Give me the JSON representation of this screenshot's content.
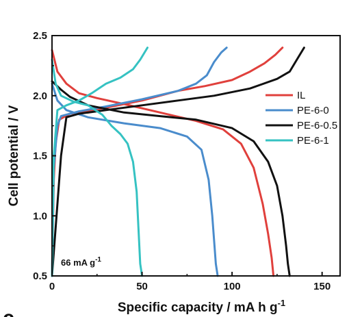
{
  "chart_data": {
    "type": "line",
    "panel_label": "c",
    "xlabel": "Specific capacity / mA h g",
    "xlabel_sup": "-1",
    "ylabel": "Cell potential / V",
    "xlim": [
      0,
      160
    ],
    "ylim": [
      0.5,
      2.5
    ],
    "x_ticks": [
      0,
      50,
      100,
      150
    ],
    "y_ticks": [
      "0.5",
      "1.0",
      "1.5",
      "2.0",
      "2.5"
    ],
    "annotation": {
      "text": "66 mA g",
      "sup": "-1"
    },
    "legend_position": "right",
    "series": [
      {
        "name": "IL",
        "color": "#e0403c",
        "discharge": [
          [
            0,
            2.38
          ],
          [
            3,
            2.2
          ],
          [
            8,
            2.1
          ],
          [
            15,
            2.02
          ],
          [
            25,
            1.98
          ],
          [
            40,
            1.93
          ],
          [
            60,
            1.86
          ],
          [
            80,
            1.79
          ],
          [
            95,
            1.72
          ],
          [
            105,
            1.6
          ],
          [
            112,
            1.4
          ],
          [
            117,
            1.1
          ],
          [
            120,
            0.85
          ],
          [
            122,
            0.65
          ],
          [
            123,
            0.5
          ]
        ],
        "charge": [
          [
            0,
            0.5
          ],
          [
            1,
            1.3
          ],
          [
            2,
            1.6
          ],
          [
            4,
            1.8
          ],
          [
            10,
            1.85
          ],
          [
            30,
            1.9
          ],
          [
            50,
            1.96
          ],
          [
            70,
            2.04
          ],
          [
            85,
            2.08
          ],
          [
            100,
            2.13
          ],
          [
            110,
            2.2
          ],
          [
            118,
            2.27
          ],
          [
            124,
            2.34
          ],
          [
            128,
            2.4
          ]
        ]
      },
      {
        "name": "PE-6-0",
        "color": "#4a8ccc",
        "discharge": [
          [
            0,
            2.1
          ],
          [
            3,
            1.96
          ],
          [
            8,
            1.88
          ],
          [
            20,
            1.82
          ],
          [
            40,
            1.77
          ],
          [
            60,
            1.73
          ],
          [
            75,
            1.66
          ],
          [
            83,
            1.55
          ],
          [
            87,
            1.3
          ],
          [
            89,
            1.0
          ],
          [
            90,
            0.8
          ],
          [
            91,
            0.6
          ],
          [
            92,
            0.5
          ]
        ],
        "charge": [
          [
            0,
            0.5
          ],
          [
            1,
            1.4
          ],
          [
            3,
            1.75
          ],
          [
            5,
            1.83
          ],
          [
            15,
            1.87
          ],
          [
            30,
            1.91
          ],
          [
            50,
            1.97
          ],
          [
            70,
            2.04
          ],
          [
            80,
            2.1
          ],
          [
            86,
            2.17
          ],
          [
            90,
            2.28
          ],
          [
            94,
            2.36
          ],
          [
            97,
            2.4
          ]
        ]
      },
      {
        "name": "PE-6-0.5",
        "color": "#111111",
        "discharge": [
          [
            0,
            2.12
          ],
          [
            5,
            2.05
          ],
          [
            10,
            1.99
          ],
          [
            20,
            1.92
          ],
          [
            40,
            1.86
          ],
          [
            60,
            1.83
          ],
          [
            80,
            1.8
          ],
          [
            100,
            1.73
          ],
          [
            112,
            1.62
          ],
          [
            120,
            1.45
          ],
          [
            125,
            1.25
          ],
          [
            128,
            1.0
          ],
          [
            130,
            0.75
          ],
          [
            131,
            0.6
          ],
          [
            132,
            0.5
          ]
        ],
        "charge": [
          [
            0,
            0.5
          ],
          [
            2,
            0.9
          ],
          [
            5,
            1.5
          ],
          [
            8,
            1.82
          ],
          [
            15,
            1.85
          ],
          [
            30,
            1.88
          ],
          [
            50,
            1.92
          ],
          [
            70,
            1.96
          ],
          [
            90,
            2.0
          ],
          [
            110,
            2.06
          ],
          [
            125,
            2.14
          ],
          [
            132,
            2.2
          ],
          [
            136,
            2.3
          ],
          [
            140,
            2.4
          ]
        ]
      },
      {
        "name": "PE-6-1",
        "color": "#35c2c2",
        "discharge": [
          [
            0,
            2.3
          ],
          [
            2,
            2.1
          ],
          [
            5,
            2.0
          ],
          [
            12,
            1.95
          ],
          [
            20,
            1.92
          ],
          [
            28,
            1.84
          ],
          [
            33,
            1.75
          ],
          [
            38,
            1.68
          ],
          [
            42,
            1.6
          ],
          [
            45,
            1.45
          ],
          [
            47,
            1.2
          ],
          [
            48,
            0.9
          ],
          [
            49,
            0.6
          ],
          [
            50,
            0.5
          ]
        ],
        "charge": [
          [
            0,
            0.5
          ],
          [
            1,
            1.5
          ],
          [
            3,
            1.88
          ],
          [
            8,
            1.92
          ],
          [
            15,
            1.96
          ],
          [
            22,
            2.02
          ],
          [
            30,
            2.1
          ],
          [
            38,
            2.15
          ],
          [
            45,
            2.22
          ],
          [
            49,
            2.3
          ],
          [
            53,
            2.4
          ]
        ]
      }
    ]
  }
}
